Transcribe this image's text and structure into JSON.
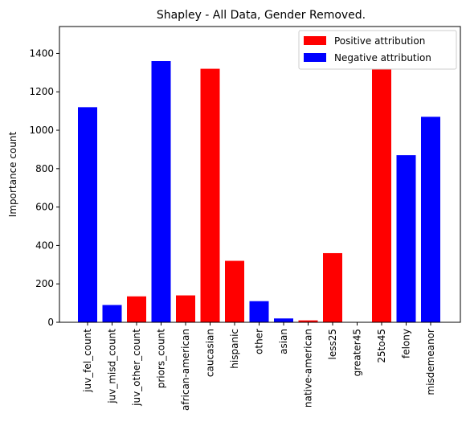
{
  "chart_data": {
    "type": "bar",
    "title": "Shapley - All Data, Gender Removed.",
    "xlabel": "",
    "ylabel": "Importance count",
    "ylim": [
      0,
      1540
    ],
    "yticks": [
      0,
      200,
      400,
      600,
      800,
      1000,
      1200,
      1400
    ],
    "grid": false,
    "legend_position": "top-right",
    "legend": [
      {
        "label": "Positive attribution",
        "color": "#ff0000",
        "key": "positive"
      },
      {
        "label": "Negative attribution",
        "color": "#0000ff",
        "key": "negative"
      }
    ],
    "categories": [
      "juv_fel_count",
      "juv_misd_count",
      "juv_other_count",
      "priors_count",
      "african-american",
      "caucasian",
      "hispanic",
      "other",
      "asian",
      "native-american",
      "less25",
      "greater45",
      "25to45",
      "felony",
      "misdemeanor"
    ],
    "values": [
      1120,
      90,
      135,
      1360,
      140,
      1320,
      320,
      110,
      20,
      10,
      360,
      0,
      1460,
      870,
      1070
    ],
    "attribution": [
      "negative",
      "negative",
      "positive",
      "negative",
      "positive",
      "positive",
      "positive",
      "negative",
      "negative",
      "positive",
      "positive",
      "positive",
      "positive",
      "negative",
      "negative"
    ]
  }
}
